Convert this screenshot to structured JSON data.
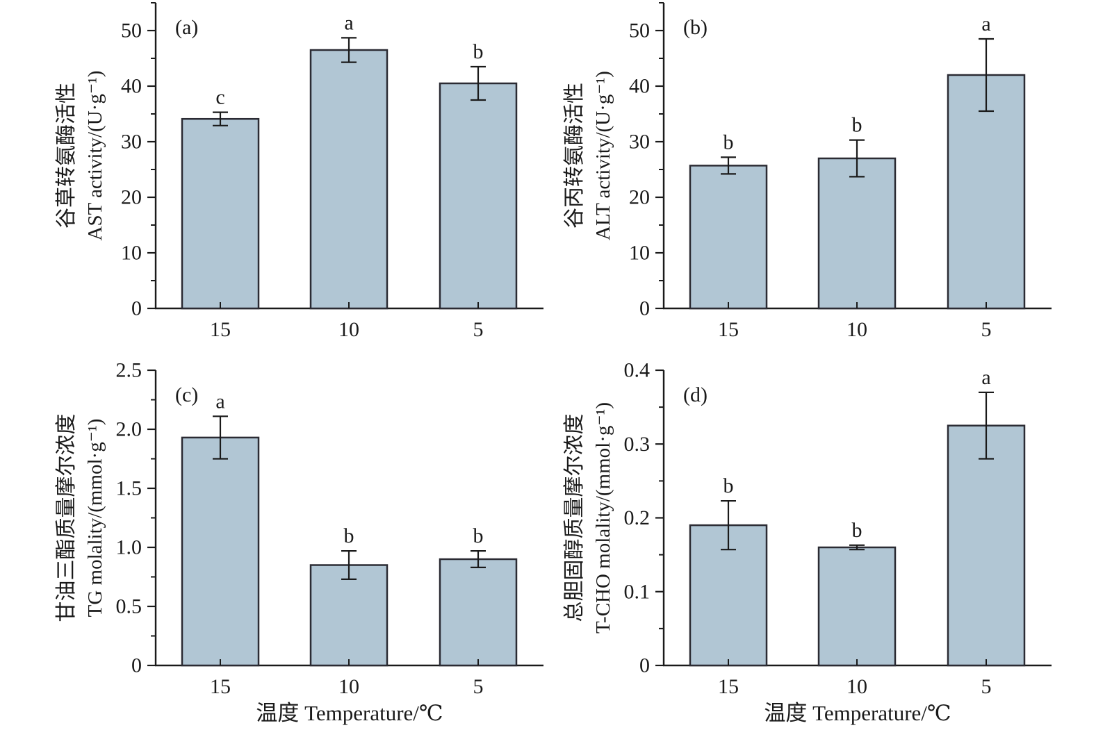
{
  "figure": {
    "background": "#ffffff",
    "bar_fill": "#b1c6d4",
    "bar_stroke": "#2b2b33",
    "axis_color": "#1a1a1a",
    "x_axis_title": "温度 Temperature/℃"
  },
  "chart_data": [
    {
      "type": "bar",
      "panel_tag": "(a)",
      "categories": [
        "15",
        "10",
        "5"
      ],
      "values": [
        34.1,
        46.5,
        40.5
      ],
      "errors": [
        1.2,
        2.2,
        3.0
      ],
      "sig_letters": [
        "c",
        "a",
        "b"
      ],
      "ylabel_cn": "谷草转氨酶活性",
      "ylabel_en": "AST activity/(U·g⁻¹)",
      "xlabel": "",
      "ylim": [
        0,
        55
      ],
      "ytick_step": 10,
      "yminor_step": 5,
      "ytick_labels": [
        "0",
        "10",
        "20",
        "30",
        "40",
        "50"
      ],
      "grid": false,
      "legend": null
    },
    {
      "type": "bar",
      "panel_tag": "(b)",
      "categories": [
        "15",
        "10",
        "5"
      ],
      "values": [
        25.7,
        27.0,
        42.0
      ],
      "errors": [
        1.5,
        3.3,
        6.5
      ],
      "sig_letters": [
        "b",
        "b",
        "a"
      ],
      "ylabel_cn": "谷丙转氨酶活性",
      "ylabel_en": "ALT activity/(U·g⁻¹)",
      "xlabel": "",
      "ylim": [
        0,
        55
      ],
      "ytick_step": 10,
      "yminor_step": 5,
      "ytick_labels": [
        "0",
        "10",
        "20",
        "30",
        "40",
        "50"
      ],
      "grid": false,
      "legend": null
    },
    {
      "type": "bar",
      "panel_tag": "(c)",
      "categories": [
        "15",
        "10",
        "5"
      ],
      "values": [
        1.93,
        0.85,
        0.9
      ],
      "errors": [
        0.18,
        0.12,
        0.07
      ],
      "sig_letters": [
        "a",
        "b",
        "b"
      ],
      "ylabel_cn": "甘油三酯质量摩尔浓度",
      "ylabel_en": "TG molality/(mmol·g⁻¹)",
      "xlabel": "温度 Temperature/℃",
      "ylim": [
        0,
        2.5
      ],
      "ytick_step": 0.5,
      "yminor_step": 0.25,
      "ytick_labels": [
        "0",
        "0.5",
        "1.0",
        "1.5",
        "2.0",
        "2.5"
      ],
      "grid": false,
      "legend": null
    },
    {
      "type": "bar",
      "panel_tag": "(d)",
      "categories": [
        "15",
        "10",
        "5"
      ],
      "values": [
        0.19,
        0.16,
        0.325
      ],
      "errors": [
        0.033,
        0.003,
        0.045
      ],
      "sig_letters": [
        "b",
        "b",
        "a"
      ],
      "ylabel_cn": "总胆固醇质量摩尔浓度",
      "ylabel_en": "T-CHO molality/(mmol·g⁻¹)",
      "xlabel": "温度 Temperature/℃",
      "ylim": [
        0,
        0.4
      ],
      "ytick_step": 0.1,
      "yminor_step": 0.05,
      "ytick_labels": [
        "0",
        "0.1",
        "0.2",
        "0.3",
        "0.4"
      ],
      "grid": false,
      "legend": null
    }
  ]
}
